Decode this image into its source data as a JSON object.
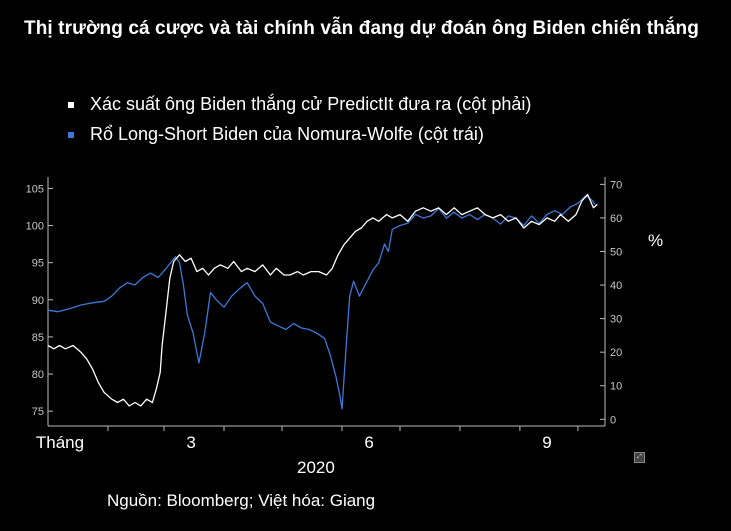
{
  "title": "Thị trường cá cược và tài chính vẫn đang dự đoán ông Biden chiến thắng",
  "source_note": "Nguồn: Bloomberg; Việt hóa: Giang",
  "corner_icon": "expand-icon",
  "colors": {
    "background": "#000000",
    "white_series": "#ffffff",
    "blue_series": "#3c78d8"
  },
  "chart_data": {
    "type": "line",
    "legend_placement": "top-left",
    "grid": false,
    "x_tick_labels": [
      "Tháng",
      "3",
      "6",
      "9"
    ],
    "x_group_label": "2020",
    "y_left": {
      "ticks": [
        "105",
        "100",
        "95",
        "90",
        "85",
        "80",
        "75"
      ],
      "range": [
        73,
        106
      ]
    },
    "y_right": {
      "ticks": [
        "70",
        "60",
        "50",
        "40",
        "30",
        "20",
        "10",
        "0"
      ],
      "range": [
        -2,
        71
      ],
      "unit": "%"
    },
    "x_range": [
      "2020-01-01",
      "2020-10-15"
    ],
    "series": [
      {
        "name": "Xác suất ông Biden thắng cử PredictIt đưa ra (cột phải)",
        "axis": "right",
        "color": "#ffffff",
        "points": [
          [
            "2020-01-01",
            22
          ],
          [
            "2020-01-04",
            21
          ],
          [
            "2020-01-07",
            22
          ],
          [
            "2020-01-10",
            21
          ],
          [
            "2020-01-14",
            22
          ],
          [
            "2020-01-18",
            20
          ],
          [
            "2020-01-21",
            18
          ],
          [
            "2020-01-24",
            15
          ],
          [
            "2020-01-27",
            11
          ],
          [
            "2020-01-30",
            8
          ],
          [
            "2020-02-03",
            6
          ],
          [
            "2020-02-06",
            5
          ],
          [
            "2020-02-09",
            6
          ],
          [
            "2020-02-12",
            4
          ],
          [
            "2020-02-15",
            5
          ],
          [
            "2020-02-18",
            4
          ],
          [
            "2020-02-21",
            6
          ],
          [
            "2020-02-24",
            5
          ],
          [
            "2020-02-26",
            9
          ],
          [
            "2020-02-28",
            14
          ],
          [
            "2020-02-29",
            22
          ],
          [
            "2020-03-02",
            32
          ],
          [
            "2020-03-04",
            42
          ],
          [
            "2020-03-06",
            47
          ],
          [
            "2020-03-09",
            49
          ],
          [
            "2020-03-12",
            47
          ],
          [
            "2020-03-15",
            48
          ],
          [
            "2020-03-18",
            44
          ],
          [
            "2020-03-21",
            45
          ],
          [
            "2020-03-24",
            43
          ],
          [
            "2020-03-27",
            45
          ],
          [
            "2020-03-30",
            46
          ],
          [
            "2020-04-03",
            45
          ],
          [
            "2020-04-06",
            47
          ],
          [
            "2020-04-10",
            44
          ],
          [
            "2020-04-13",
            45
          ],
          [
            "2020-04-17",
            44
          ],
          [
            "2020-04-21",
            46
          ],
          [
            "2020-04-25",
            43
          ],
          [
            "2020-04-28",
            45
          ],
          [
            "2020-05-02",
            43
          ],
          [
            "2020-05-05",
            43
          ],
          [
            "2020-05-09",
            44
          ],
          [
            "2020-05-12",
            43
          ],
          [
            "2020-05-16",
            44
          ],
          [
            "2020-05-20",
            44
          ],
          [
            "2020-05-24",
            43
          ],
          [
            "2020-05-27",
            45
          ],
          [
            "2020-05-30",
            49
          ],
          [
            "2020-06-02",
            52
          ],
          [
            "2020-06-05",
            54
          ],
          [
            "2020-06-08",
            56
          ],
          [
            "2020-06-11",
            57
          ],
          [
            "2020-06-14",
            59
          ],
          [
            "2020-06-17",
            60
          ],
          [
            "2020-06-20",
            59
          ],
          [
            "2020-06-24",
            61
          ],
          [
            "2020-06-27",
            60
          ],
          [
            "2020-07-01",
            61
          ],
          [
            "2020-07-05",
            59
          ],
          [
            "2020-07-09",
            62
          ],
          [
            "2020-07-13",
            63
          ],
          [
            "2020-07-17",
            62
          ],
          [
            "2020-07-21",
            63
          ],
          [
            "2020-07-25",
            61
          ],
          [
            "2020-07-29",
            63
          ],
          [
            "2020-08-02",
            61
          ],
          [
            "2020-08-06",
            62
          ],
          [
            "2020-08-10",
            63
          ],
          [
            "2020-08-14",
            61
          ],
          [
            "2020-08-18",
            60
          ],
          [
            "2020-08-22",
            61
          ],
          [
            "2020-08-26",
            59
          ],
          [
            "2020-08-30",
            60
          ],
          [
            "2020-09-03",
            57
          ],
          [
            "2020-09-07",
            59
          ],
          [
            "2020-09-11",
            58
          ],
          [
            "2020-09-15",
            60
          ],
          [
            "2020-09-19",
            59
          ],
          [
            "2020-09-22",
            61
          ],
          [
            "2020-09-26",
            59
          ],
          [
            "2020-09-30",
            61
          ],
          [
            "2020-10-03",
            65
          ],
          [
            "2020-10-06",
            67
          ],
          [
            "2020-10-09",
            63
          ],
          [
            "2020-10-11",
            64
          ]
        ]
      },
      {
        "name": "Rổ Long-Short Biden của Nomura-Wolfe (cột trái)",
        "axis": "left",
        "color": "#3c78d8",
        "points": [
          [
            "2020-01-01",
            88.6
          ],
          [
            "2020-01-06",
            88.4
          ],
          [
            "2020-01-12",
            88.8
          ],
          [
            "2020-01-18",
            89.3
          ],
          [
            "2020-01-24",
            89.6
          ],
          [
            "2020-01-30",
            89.8
          ],
          [
            "2020-02-03",
            90.5
          ],
          [
            "2020-02-07",
            91.6
          ],
          [
            "2020-02-11",
            92.3
          ],
          [
            "2020-02-15",
            92.0
          ],
          [
            "2020-02-19",
            93.0
          ],
          [
            "2020-02-23",
            93.6
          ],
          [
            "2020-02-27",
            93.0
          ],
          [
            "2020-03-02",
            94.2
          ],
          [
            "2020-03-05",
            95.2
          ],
          [
            "2020-03-07",
            95.8
          ],
          [
            "2020-03-09",
            95.0
          ],
          [
            "2020-03-11",
            92.0
          ],
          [
            "2020-03-13",
            88.0
          ],
          [
            "2020-03-16",
            85.5
          ],
          [
            "2020-03-19",
            81.5
          ],
          [
            "2020-03-22",
            85.5
          ],
          [
            "2020-03-25",
            91.0
          ],
          [
            "2020-03-28",
            90.0
          ],
          [
            "2020-04-01",
            89.0
          ],
          [
            "2020-04-05",
            90.5
          ],
          [
            "2020-04-09",
            91.5
          ],
          [
            "2020-04-13",
            92.3
          ],
          [
            "2020-04-17",
            90.5
          ],
          [
            "2020-04-21",
            89.5
          ],
          [
            "2020-04-25",
            87.0
          ],
          [
            "2020-04-29",
            86.5
          ],
          [
            "2020-05-03",
            86.0
          ],
          [
            "2020-05-07",
            86.8
          ],
          [
            "2020-05-11",
            86.2
          ],
          [
            "2020-05-15",
            86.0
          ],
          [
            "2020-05-19",
            85.5
          ],
          [
            "2020-05-23",
            84.8
          ],
          [
            "2020-05-26",
            82.5
          ],
          [
            "2020-05-29",
            79.5
          ],
          [
            "2020-05-31",
            77.0
          ],
          [
            "2020-06-01",
            75.3
          ],
          [
            "2020-06-03",
            83.0
          ],
          [
            "2020-06-05",
            90.5
          ],
          [
            "2020-06-07",
            92.5
          ],
          [
            "2020-06-10",
            90.5
          ],
          [
            "2020-06-13",
            92.0
          ],
          [
            "2020-06-17",
            94.0
          ],
          [
            "2020-06-20",
            95.0
          ],
          [
            "2020-06-23",
            97.5
          ],
          [
            "2020-06-25",
            96.5
          ],
          [
            "2020-06-27",
            99.5
          ],
          [
            "2020-07-01",
            100.0
          ],
          [
            "2020-07-05",
            100.3
          ],
          [
            "2020-07-09",
            101.5
          ],
          [
            "2020-07-13",
            101.0
          ],
          [
            "2020-07-17",
            101.3
          ],
          [
            "2020-07-21",
            102.3
          ],
          [
            "2020-07-25",
            101.0
          ],
          [
            "2020-07-29",
            101.8
          ],
          [
            "2020-08-02",
            101.0
          ],
          [
            "2020-08-06",
            101.5
          ],
          [
            "2020-08-10",
            100.8
          ],
          [
            "2020-08-14",
            101.5
          ],
          [
            "2020-08-18",
            101.0
          ],
          [
            "2020-08-22",
            100.2
          ],
          [
            "2020-08-26",
            101.3
          ],
          [
            "2020-08-30",
            101.0
          ],
          [
            "2020-09-03",
            100.0
          ],
          [
            "2020-09-07",
            101.3
          ],
          [
            "2020-09-11",
            100.3
          ],
          [
            "2020-09-15",
            101.5
          ],
          [
            "2020-09-19",
            102.0
          ],
          [
            "2020-09-23",
            101.5
          ],
          [
            "2020-09-27",
            102.5
          ],
          [
            "2020-10-01",
            103.0
          ],
          [
            "2020-10-05",
            104.0
          ],
          [
            "2020-10-08",
            103.5
          ],
          [
            "2020-10-10",
            102.8
          ]
        ]
      }
    ]
  }
}
